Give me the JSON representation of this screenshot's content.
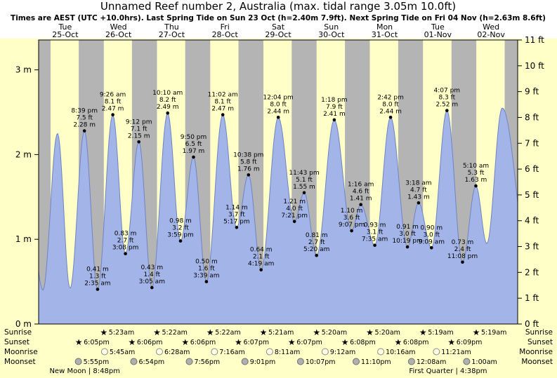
{
  "header": {
    "title": "Unnamed Reef number 2, Australia (max. tidal range 3.05m 10.0ft)",
    "subtitle": "Times are AEST (UTC +10.0hrs). Last Spring Tide on Sun 23 Oct (h=2.40m 7.9ft). Next Spring Tide on Fri 04 Nov (h=2.63m 8.6ft)"
  },
  "colors": {
    "day_band": "#ffffc8",
    "night_band": "#b4b4b4",
    "tide_fill": "#a3b4e8",
    "tide_stroke": "#6e84c4",
    "day_label": "#e00000",
    "sun_star": "#f0a432",
    "moonrise_fill": "#ffffe6",
    "moonrise_stroke": "#8a8a8a",
    "moonset_fill": "#b0b0b0",
    "moonset_stroke": "#6f6f6f"
  },
  "days": [
    {
      "dow": "Tue",
      "date": "25-Oct"
    },
    {
      "dow": "Wed",
      "date": "26-Oct"
    },
    {
      "dow": "Thu",
      "date": "27-Oct"
    },
    {
      "dow": "Fri",
      "date": "28-Oct"
    },
    {
      "dow": "Sat",
      "date": "29-Oct"
    },
    {
      "dow": "Sun",
      "date": "30-Oct"
    },
    {
      "dow": "Mon",
      "date": "31-Oct"
    },
    {
      "dow": "Tue",
      "date": "01-Nov"
    },
    {
      "dow": "Wed",
      "date": "02-Nov"
    }
  ],
  "y_axis": {
    "left_labels": [
      "0 m",
      "1 m",
      "2 m",
      "3 m"
    ],
    "right_labels": [
      "0 ft",
      "1 ft",
      "2 ft",
      "3 ft",
      "4 ft",
      "5 ft",
      "6 ft",
      "7 ft",
      "8 ft",
      "9 ft",
      "10 ft",
      "11 ft"
    ]
  },
  "chart_data": {
    "type": "area",
    "title": "Tide height curve for Unnamed Reef number 2, Australia",
    "x_axis": "Tue 25-Oct through Wed 02-Nov (9 days, day/night shading)",
    "y_axis_left_unit": "m",
    "y_axis_right_unit": "ft",
    "ylim_m": [
      0,
      3.3528
    ],
    "ylim_ft": [
      0,
      11
    ],
    "tide_extremes": [
      {
        "kind": "high",
        "day": 0,
        "time": "8:39 pm",
        "ft": "7.5 ft",
        "m": "2.28 m",
        "height_m": 2.28
      },
      {
        "kind": "low",
        "day": 1,
        "time": "2:35 am",
        "ft": "1.3 ft",
        "m": "0.41 m",
        "height_m": 0.41
      },
      {
        "kind": "high",
        "day": 1,
        "time": "9:26 am",
        "ft": "8.1 ft",
        "m": "2.47 m",
        "height_m": 2.47
      },
      {
        "kind": "low",
        "day": 1,
        "time": "3:08 pm",
        "ft": "2.7 ft",
        "m": "0.83 m",
        "height_m": 0.83
      },
      {
        "kind": "high",
        "day": 1,
        "time": "9:12 pm",
        "ft": "7.1 ft",
        "m": "2.15 m",
        "height_m": 2.15
      },
      {
        "kind": "low",
        "day": 2,
        "time": "3:05 am",
        "ft": "1.4 ft",
        "m": "0.43 m",
        "height_m": 0.43
      },
      {
        "kind": "high",
        "day": 2,
        "time": "10:10 am",
        "ft": "8.2 ft",
        "m": "2.49 m",
        "height_m": 2.49
      },
      {
        "kind": "low",
        "day": 2,
        "time": "3:59 pm",
        "ft": "3.2 ft",
        "m": "0.98 m",
        "height_m": 0.98
      },
      {
        "kind": "high",
        "day": 2,
        "time": "9:50 pm",
        "ft": "6.5 ft",
        "m": "1.97 m",
        "height_m": 1.97
      },
      {
        "kind": "low",
        "day": 3,
        "time": "3:39 am",
        "ft": "1.6 ft",
        "m": "0.50 m",
        "height_m": 0.5
      },
      {
        "kind": "high",
        "day": 3,
        "time": "11:02 am",
        "ft": "8.1 ft",
        "m": "2.47 m",
        "height_m": 2.47
      },
      {
        "kind": "low",
        "day": 3,
        "time": "5:17 pm",
        "ft": "3.7 ft",
        "m": "1.14 m",
        "height_m": 1.14
      },
      {
        "kind": "high",
        "day": 3,
        "time": "10:38 pm",
        "ft": "5.8 ft",
        "m": "1.76 m",
        "height_m": 1.76
      },
      {
        "kind": "low",
        "day": 4,
        "time": "4:19 am",
        "ft": "2.1 ft",
        "m": "0.64 m",
        "height_m": 0.64
      },
      {
        "kind": "high",
        "day": 4,
        "time": "12:04 pm",
        "ft": "8.0 ft",
        "m": "2.44 m",
        "height_m": 2.44
      },
      {
        "kind": "low",
        "day": 4,
        "time": "7:21 pm",
        "ft": "4.0 ft",
        "m": "1.21 m",
        "height_m": 1.21
      },
      {
        "kind": "high",
        "day": 4,
        "time": "11:43 pm",
        "ft": "5.1 ft",
        "m": "1.55 m",
        "height_m": 1.55
      },
      {
        "kind": "low",
        "day": 5,
        "time": "5:20 am",
        "ft": "2.7 ft",
        "m": "0.81 m",
        "height_m": 0.81
      },
      {
        "kind": "high",
        "day": 5,
        "time": "1:18 pm",
        "ft": "7.9 ft",
        "m": "2.41 m",
        "height_m": 2.41
      },
      {
        "kind": "low",
        "day": 5,
        "time": "9:07 pm",
        "ft": "3.6 ft",
        "m": "1.10 m",
        "height_m": 1.1
      },
      {
        "kind": "high",
        "day": 6,
        "time": "1:16 am",
        "ft": "4.6 ft",
        "m": "1.41 m",
        "height_m": 1.41
      },
      {
        "kind": "low",
        "day": 6,
        "time": "7:35 am",
        "ft": "3.1 ft",
        "m": "0.93 m",
        "height_m": 0.93
      },
      {
        "kind": "high",
        "day": 6,
        "time": "2:42 pm",
        "ft": "8.0 ft",
        "m": "2.44 m",
        "height_m": 2.44
      },
      {
        "kind": "low",
        "day": 6,
        "time": "10:19 pm",
        "ft": "3.0 ft",
        "m": "0.91 m",
        "height_m": 0.91
      },
      {
        "kind": "high",
        "day": 7,
        "time": "3:18 am",
        "ft": "4.7 ft",
        "m": "1.43 m",
        "height_m": 1.43
      },
      {
        "kind": "low",
        "day": 7,
        "time": "9:09 am",
        "ft": "3.0 ft",
        "m": "0.90 m",
        "height_m": 0.9
      },
      {
        "kind": "high",
        "day": 7,
        "time": "4:07 pm",
        "ft": "8.3 ft",
        "m": "2.52 m",
        "height_m": 2.52
      },
      {
        "kind": "low",
        "day": 7,
        "time": "11:08 pm",
        "ft": "2.4 ft",
        "m": "0.73 m",
        "height_m": 0.73
      },
      {
        "kind": "high",
        "day": 8,
        "time": "5:10 am",
        "ft": "5.3 ft",
        "m": "1.63 m",
        "height_m": 1.63
      }
    ]
  },
  "sun_moon": {
    "sunrise": {
      "label": "Sunrise",
      "events": [
        {
          "day": 1,
          "time": "5:23am"
        },
        {
          "day": 2,
          "time": "5:22am"
        },
        {
          "day": 3,
          "time": "5:22am"
        },
        {
          "day": 4,
          "time": "5:21am"
        },
        {
          "day": 5,
          "time": "5:20am"
        },
        {
          "day": 6,
          "time": "5:20am"
        },
        {
          "day": 7,
          "time": "5:19am"
        },
        {
          "day": 8,
          "time": "5:19am"
        }
      ]
    },
    "sunset": {
      "label": "Sunset",
      "events": [
        {
          "day": 0,
          "time": "6:05pm"
        },
        {
          "day": 1,
          "time": "6:06pm"
        },
        {
          "day": 2,
          "time": "6:06pm"
        },
        {
          "day": 3,
          "time": "6:07pm"
        },
        {
          "day": 4,
          "time": "6:07pm"
        },
        {
          "day": 5,
          "time": "6:08pm"
        },
        {
          "day": 6,
          "time": "6:08pm"
        },
        {
          "day": 7,
          "time": "6:09pm"
        }
      ]
    },
    "moonrise": {
      "label": "Moonrise",
      "events": [
        {
          "day": 1,
          "time": "5:45am"
        },
        {
          "day": 2,
          "time": "6:28am"
        },
        {
          "day": 3,
          "time": "7:16am"
        },
        {
          "day": 4,
          "time": "8:11am"
        },
        {
          "day": 5,
          "time": "9:12am"
        },
        {
          "day": 6,
          "time": "10:16am"
        },
        {
          "day": 7,
          "time": "11:21am"
        }
      ]
    },
    "moonset": {
      "label": "Moonset",
      "events": [
        {
          "day": 0,
          "time": "5:55pm"
        },
        {
          "day": 1,
          "time": "6:54pm"
        },
        {
          "day": 2,
          "time": "7:56pm"
        },
        {
          "day": 3,
          "time": "9:01pm"
        },
        {
          "day": 4,
          "time": "10:07pm"
        },
        {
          "day": 5,
          "time": "11:10pm"
        },
        {
          "day": 7,
          "time": "12:08am"
        },
        {
          "day": 8,
          "time": "1:00am"
        }
      ]
    }
  },
  "moon_phases": [
    {
      "name": "New Moon",
      "time": "8:48pm",
      "day": 0
    },
    {
      "name": "First Quarter",
      "time": "4:38pm",
      "day": 7
    }
  ]
}
